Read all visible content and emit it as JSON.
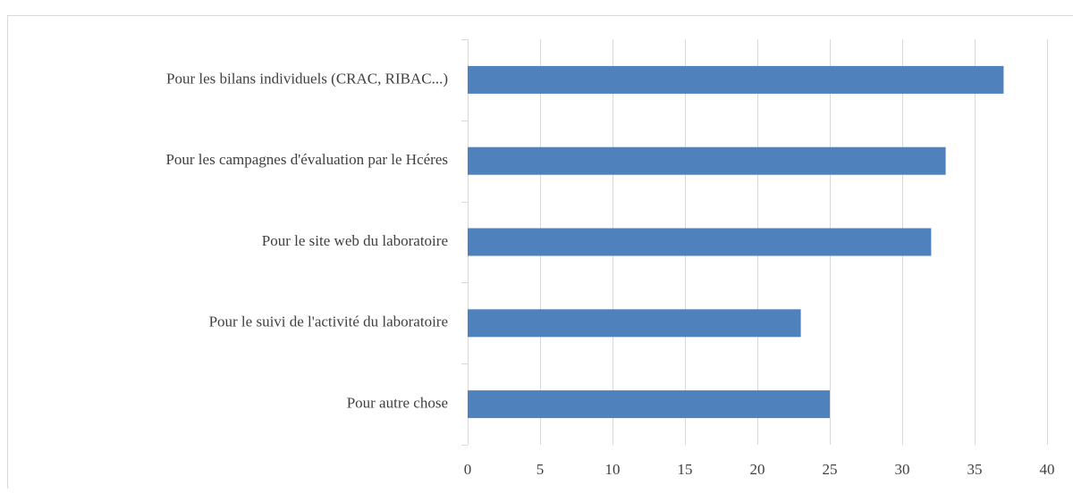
{
  "chart_data": {
    "type": "bar",
    "orientation": "horizontal",
    "categories": [
      "Pour les bilans individuels (CRAC, RIBAC...)",
      "Pour les campagnes d'évaluation par le Hcéres",
      "Pour le site web du laboratoire",
      "Pour le suivi de l'activité du laboratoire",
      "Pour autre chose"
    ],
    "values": [
      37,
      33,
      32,
      23,
      25
    ],
    "color": "#4f81bd",
    "xlim": [
      0,
      40
    ],
    "xticks": [
      0,
      5,
      10,
      15,
      20,
      25,
      30,
      35,
      40
    ],
    "grid": true
  }
}
